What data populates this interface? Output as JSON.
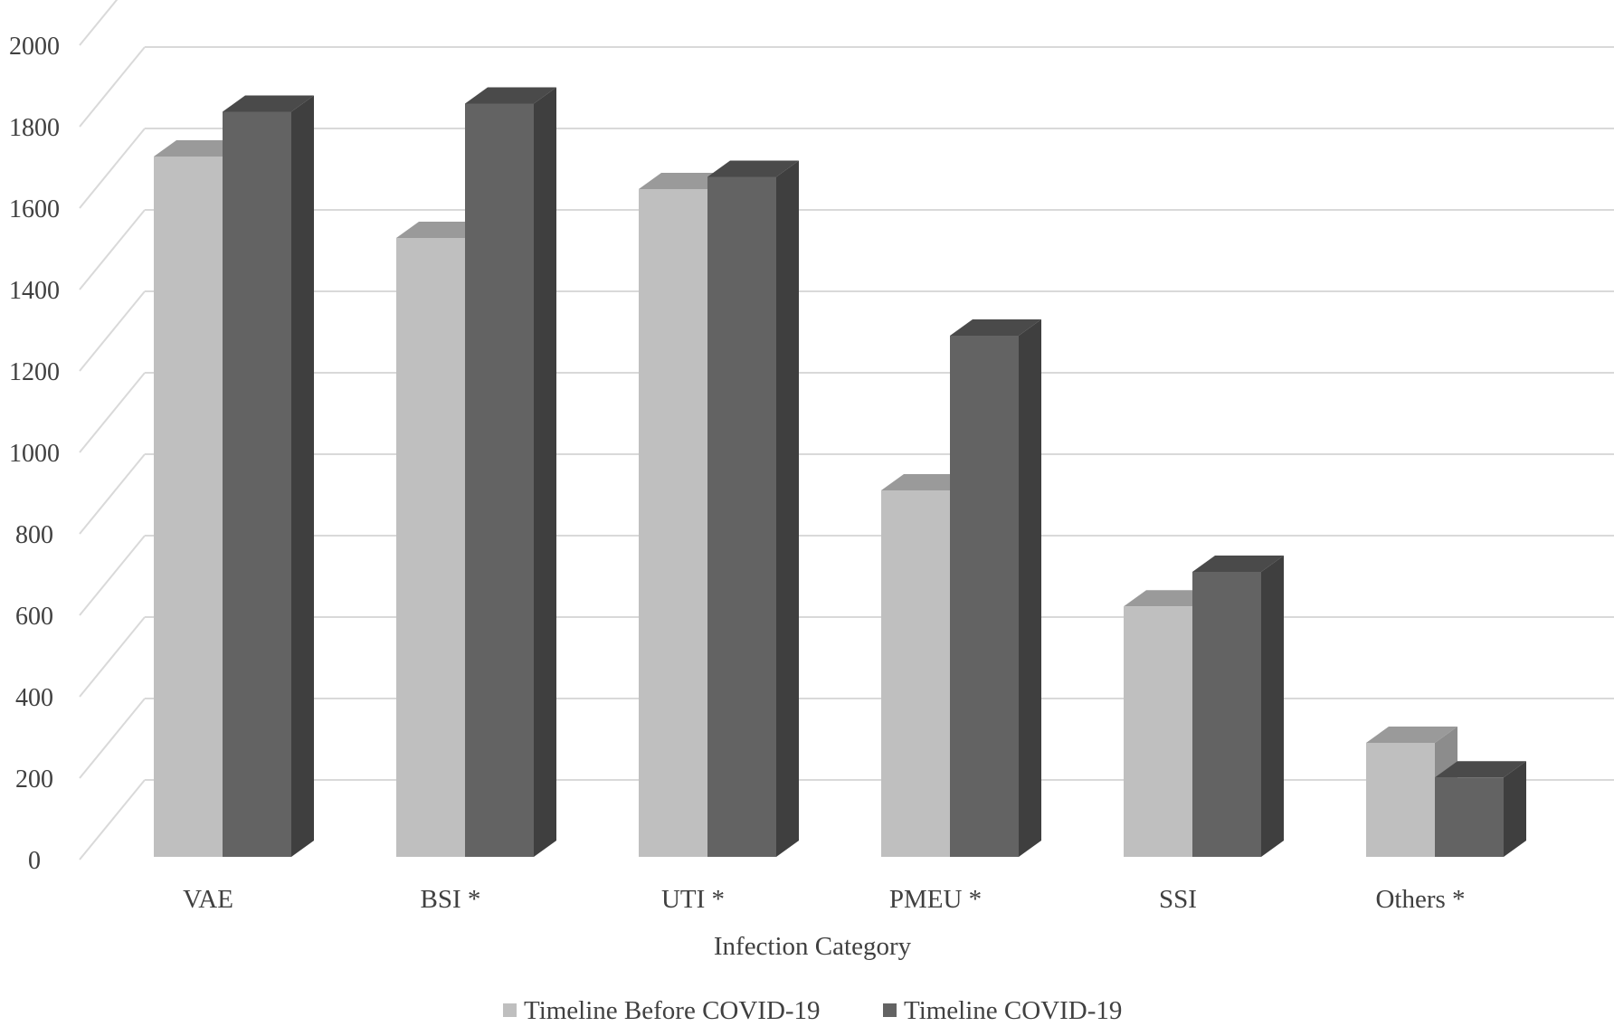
{
  "chart_data": {
    "type": "bar",
    "style": "3d-clustered-column",
    "title": "",
    "xlabel": "Infection Category",
    "ylabel": "",
    "ylim": [
      0,
      2000
    ],
    "yticks": [
      0,
      200,
      400,
      600,
      800,
      1000,
      1200,
      1400,
      1600,
      1800,
      2000
    ],
    "ytick_labels": [
      "0",
      "200",
      "400",
      "600",
      "800",
      "1000",
      "1200",
      "1400",
      "1600",
      "1800",
      "2000"
    ],
    "grid": true,
    "legend_position": "bottom",
    "categories": [
      "VAE",
      "BSI *",
      "UTI *",
      "PMEU *",
      "SSI",
      "Others *"
    ],
    "series": [
      {
        "name": "Timeline Before COVID-19",
        "color": "#bfbfbf",
        "values": [
          1720,
          1520,
          1640,
          900,
          615,
          280
        ]
      },
      {
        "name": "Timeline COVID-19",
        "color": "#636363",
        "values": [
          1830,
          1850,
          1670,
          1280,
          700,
          195
        ]
      }
    ]
  }
}
